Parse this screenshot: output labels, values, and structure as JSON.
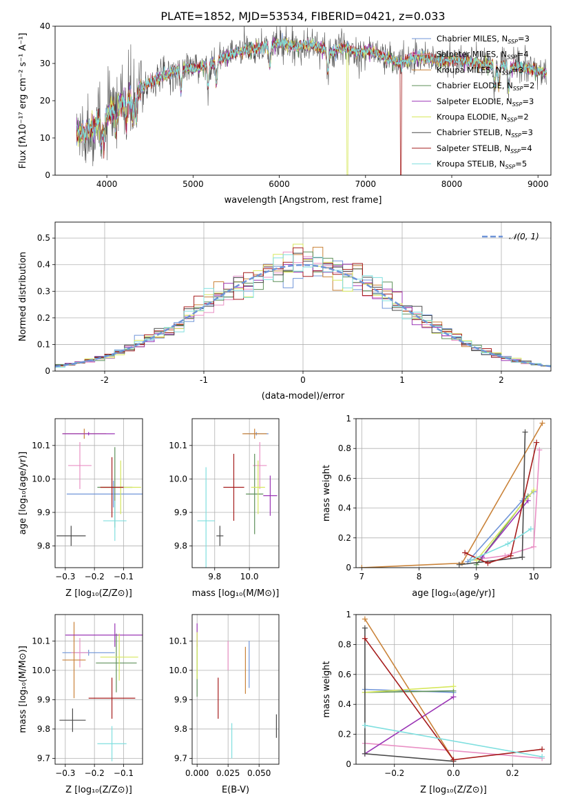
{
  "title": "PLATE=1852, MJD=53534, FIBERID=0421, z=0.033",
  "colors": {
    "chabrier_miles": "#6f94d8",
    "salpeter_miles": "#e98fc4",
    "kroupa_miles": "#c98238",
    "chabrier_elodie": "#5d8f58",
    "salpeter_elodie": "#9a34b5",
    "kroupa_elodie": "#d6e75b",
    "chabrier_stelib": "#4a4a4a",
    "salpeter_stelib": "#a51b1b",
    "kroupa_stelib": "#7fdfdf",
    "normal": "#6f94d8"
  },
  "legend": {
    "ssp_names": [
      "Chabrier MILES",
      "Salpeter MILES",
      "Kroupa MILES",
      "Chabrier ELODIE",
      "Salpeter ELODIE",
      "Kroupa ELODIE",
      "Chabrier STELIB",
      "Salpeter STELIB",
      "Kroupa STELIB"
    ],
    "nssp": [
      "3",
      "4",
      "3",
      "2",
      "3",
      "2",
      "3",
      "4",
      "5"
    ],
    "nssp_prefix": ", N",
    "nssp_sub": "SSP",
    "nssp_eq": "=",
    "normal_label": "𝒩(0, 1)"
  },
  "chart_data": [
    {
      "type": "line",
      "id": "spectrum",
      "xlabel": "wavelength [Angstrom, rest frame]",
      "ylabel": "Flux [fλ10⁻¹⁷ erg cm⁻² s⁻¹ A⁻¹]",
      "xlim": [
        3400,
        9150
      ],
      "ylim": [
        0,
        40
      ],
      "xticks": [
        4000,
        5000,
        6000,
        7000,
        8000,
        9000
      ],
      "yticks": [
        0,
        10,
        20,
        30,
        40
      ],
      "continuum": {
        "x": [
          3650,
          3700,
          3800,
          3900,
          3950,
          4000,
          4100,
          4200,
          4300,
          4400,
          4500,
          4600,
          4700,
          4800,
          4900,
          5000,
          5100,
          5200,
          5300,
          5400,
          5500,
          5600,
          5700,
          5800,
          5900,
          6000,
          6100,
          6200,
          6300,
          6400,
          6500,
          6600,
          6700,
          6800,
          6900,
          7000,
          7100,
          7200,
          7300,
          7400,
          7500,
          7600,
          7700,
          7800,
          7900,
          8000,
          8100,
          8200,
          8300,
          8400,
          8500,
          8600,
          8700,
          8800,
          8900,
          9000,
          9100
        ],
        "y": [
          12,
          11,
          12,
          14,
          14,
          16,
          18,
          20,
          21,
          23,
          25,
          26,
          27,
          28,
          29,
          28.5,
          29,
          30,
          31,
          32,
          33,
          33.5,
          34,
          34.5,
          35,
          35.5,
          35,
          34.5,
          35,
          35,
          34,
          33,
          34,
          34,
          33,
          33.5,
          33,
          32,
          31,
          30,
          31,
          32,
          31.5,
          31,
          30.5,
          31,
          31,
          30.5,
          30,
          29.5,
          30,
          29.5,
          29,
          29,
          28.5,
          28,
          27.5
        ]
      },
      "absorption_lines": [
        3934,
        3969,
        4102,
        4226,
        4300,
        4340,
        4861,
        5175,
        5270,
        5890,
        6563,
        8498,
        8542,
        8662
      ],
      "dropouts": [
        {
          "series": "kroupa_elodie",
          "x": 6790
        },
        {
          "series": "salpeter_stelib",
          "x": 7410
        }
      ]
    },
    {
      "type": "histogram",
      "id": "residuals",
      "xlabel": "(data-model)/error",
      "ylabel": "Normed distribution",
      "xlim": [
        -2.5,
        2.5
      ],
      "ylim": [
        0,
        0.56
      ],
      "xticks": [
        -2,
        -1,
        0,
        1,
        2
      ],
      "yticks": [
        0,
        0.1,
        0.2,
        0.3,
        0.4,
        0.5
      ],
      "bin_width": 0.1,
      "bin_start": -2.5,
      "grid": true,
      "normal": {
        "mean": 0,
        "sigma": 1
      },
      "legend_position": "top-right"
    },
    {
      "type": "errorbar",
      "id": "age_vs_z",
      "xlabel": "Z [log₁₀(Z/Z⊙)]",
      "ylabel": "age  [log₁₀(age/yr)]",
      "xlim": [
        -0.335,
        -0.035
      ],
      "ylim": [
        9.735,
        10.18
      ],
      "xticks": [
        -0.3,
        -0.2,
        -0.1
      ],
      "xticklabels": [
        "−0.3",
        "−0.2",
        "−0.1"
      ],
      "yticks": [
        9.8,
        9.9,
        10.0,
        10.1
      ],
      "yticklabels": [
        "9.8",
        "9.9",
        "10.0",
        "10.1"
      ],
      "points": [
        {
          "s": "chabrier_miles",
          "x": -0.135,
          "y": 9.955,
          "xe": 0.16,
          "ye": 0.04
        },
        {
          "s": "salpeter_miles",
          "x": -0.25,
          "y": 10.04,
          "xe": 0.04,
          "ye": 0.07
        },
        {
          "s": "kroupa_miles",
          "x": -0.235,
          "y": 10.135,
          "xe": 0.075,
          "ye": 0.015
        },
        {
          "s": "chabrier_elodie",
          "x": -0.13,
          "y": 9.975,
          "xe": 0.06,
          "ye": 0.12
        },
        {
          "s": "salpeter_elodie",
          "x": -0.22,
          "y": 10.135,
          "xe": 0.09,
          "ye": 0.005
        },
        {
          "s": "kroupa_elodie",
          "x": -0.11,
          "y": 9.975,
          "xe": 0.07,
          "ye": 0.08
        },
        {
          "s": "chabrier_stelib",
          "x": -0.28,
          "y": 9.83,
          "xe": 0.05,
          "ye": 0.03
        },
        {
          "s": "salpeter_stelib",
          "x": -0.14,
          "y": 9.975,
          "xe": 0.04,
          "ye": 0.09
        },
        {
          "s": "kroupa_stelib",
          "x": -0.13,
          "y": 9.875,
          "xe": 0.04,
          "ye": 0.06
        }
      ]
    },
    {
      "type": "errorbar",
      "id": "age_vs_mass",
      "xlabel": "mass [log₁₀(M/M⊙)]",
      "ylabel": "",
      "xlim": [
        9.67,
        10.17
      ],
      "ylim": [
        9.735,
        10.18
      ],
      "xticks": [
        9.8,
        10.0
      ],
      "xticklabels": [
        "9.8",
        "10.0"
      ],
      "yticks": [
        9.8,
        9.9,
        10.0,
        10.1
      ],
      "yticklabels": [
        "9.8",
        "9.9",
        "10.0",
        "10.1"
      ],
      "points": [
        {
          "s": "chabrier_miles",
          "x": 10.04,
          "y": 10.135,
          "xe": 0.07,
          "ye": 0.005
        },
        {
          "s": "salpeter_miles",
          "x": 10.06,
          "y": 10.04,
          "xe": 0.04,
          "ye": 0.07
        },
        {
          "s": "kroupa_miles",
          "x": 10.03,
          "y": 10.135,
          "xe": 0.07,
          "ye": 0.015
        },
        {
          "s": "chabrier_elodie",
          "x": 10.03,
          "y": 9.955,
          "xe": 0.05,
          "ye": 0.12
        },
        {
          "s": "salpeter_elodie",
          "x": 10.12,
          "y": 9.95,
          "xe": 0.04,
          "ye": 0.06
        },
        {
          "s": "kroupa_elodie",
          "x": 10.05,
          "y": 9.975,
          "xe": 0.04,
          "ye": 0.08
        },
        {
          "s": "chabrier_stelib",
          "x": 9.83,
          "y": 9.83,
          "xe": 0.02,
          "ye": 0.03
        },
        {
          "s": "salpeter_stelib",
          "x": 9.91,
          "y": 9.975,
          "xe": 0.06,
          "ye": 0.1
        },
        {
          "s": "kroupa_stelib",
          "x": 9.75,
          "y": 9.875,
          "xe": 0.05,
          "ye": 0.16
        }
      ]
    },
    {
      "type": "line",
      "id": "weight_vs_age",
      "xlabel": "age  [log₁₀(age/yr)]",
      "ylabel": "mass weight",
      "xlim": [
        6.9,
        10.3
      ],
      "ylim": [
        0,
        1.0
      ],
      "xticks": [
        7,
        8,
        9,
        10
      ],
      "yticks": [
        0,
        0.2,
        0.4,
        0.6,
        0.8,
        1.0
      ],
      "grid": true,
      "series": [
        {
          "s": "chabrier_miles",
          "x": [
            8.85,
            9.8,
            10.0
          ],
          "y": [
            0.04,
            0.45,
            0.51
          ]
        },
        {
          "s": "salpeter_miles",
          "x": [
            8.9,
            9.5,
            10.0,
            10.1
          ],
          "y": [
            0.05,
            0.08,
            0.14,
            0.79
          ]
        },
        {
          "s": "kroupa_miles",
          "x": [
            7.0,
            8.75,
            10.15
          ],
          "y": [
            0.0,
            0.03,
            0.97
          ]
        },
        {
          "s": "chabrier_elodie",
          "x": [
            9.0,
            9.9
          ],
          "y": [
            0.02,
            0.48
          ]
        },
        {
          "s": "salpeter_elodie",
          "x": [
            9.1,
            9.9
          ],
          "y": [
            0.07,
            0.45
          ]
        },
        {
          "s": "kroupa_elodie",
          "x": [
            9.0,
            10.0
          ],
          "y": [
            0.05,
            0.52
          ]
        },
        {
          "s": "chabrier_stelib",
          "x": [
            8.7,
            9.8,
            9.85
          ],
          "y": [
            0.02,
            0.07,
            0.91
          ]
        },
        {
          "s": "salpeter_stelib",
          "x": [
            8.8,
            9.2,
            9.6,
            10.05
          ],
          "y": [
            0.1,
            0.03,
            0.08,
            0.84
          ]
        },
        {
          "s": "kroupa_stelib",
          "x": [
            8.9,
            9.55,
            9.95
          ],
          "y": [
            0.05,
            0.16,
            0.26
          ]
        }
      ]
    },
    {
      "type": "errorbar",
      "id": "mass_vs_z",
      "xlabel": "Z [log₁₀(Z/Z⊙)]",
      "ylabel": "mass [log₁₀(M/M⊙)]",
      "xlim": [
        -0.335,
        -0.035
      ],
      "ylim": [
        9.68,
        10.19
      ],
      "xticks": [
        -0.3,
        -0.2,
        -0.1
      ],
      "xticklabels": [
        "−0.3",
        "−0.2",
        "−0.1"
      ],
      "yticks": [
        9.7,
        9.8,
        9.9,
        10.0,
        10.1
      ],
      "yticklabels": [
        "9.7",
        "9.8",
        "9.9",
        "10.0",
        "10.1"
      ],
      "points": [
        {
          "s": "chabrier_miles",
          "x": -0.22,
          "y": 10.06,
          "xe": 0.09,
          "ye": 0.01
        },
        {
          "s": "salpeter_miles",
          "x": -0.25,
          "y": 10.06,
          "xe": 0.03,
          "ye": 0.05
        },
        {
          "s": "kroupa_miles",
          "x": -0.27,
          "y": 10.035,
          "xe": 0.04,
          "ye": 0.13
        },
        {
          "s": "chabrier_elodie",
          "x": -0.125,
          "y": 10.025,
          "xe": 0.07,
          "ye": 0.1
        },
        {
          "s": "salpeter_elodie",
          "x": -0.13,
          "y": 10.12,
          "xe": 0.17,
          "ye": 0.04
        },
        {
          "s": "kroupa_elodie",
          "x": -0.115,
          "y": 10.045,
          "xe": 0.065,
          "ye": 0.08
        },
        {
          "s": "chabrier_stelib",
          "x": -0.275,
          "y": 9.83,
          "xe": 0.045,
          "ye": 0.04
        },
        {
          "s": "salpeter_stelib",
          "x": -0.14,
          "y": 9.905,
          "xe": 0.08,
          "ye": 0.07
        },
        {
          "s": "kroupa_stelib",
          "x": -0.14,
          "y": 9.75,
          "xe": 0.05,
          "ye": 0.06
        }
      ]
    },
    {
      "type": "errorbar",
      "id": "mass_vs_ebv",
      "xlabel": "E(B-V)",
      "ylabel": "",
      "xlim": [
        -0.004,
        0.066
      ],
      "ylim": [
        9.68,
        10.19
      ],
      "xticks": [
        0.0,
        0.025,
        0.05
      ],
      "xticklabels": [
        "0.000",
        "0.025",
        "0.050"
      ],
      "yticks": [
        9.7,
        9.8,
        9.9,
        10.0,
        10.1
      ],
      "yticklabels": [
        "9.7",
        "9.8",
        "9.9",
        "10.0",
        "10.1"
      ],
      "points": [
        {
          "s": "chabrier_miles",
          "x": 0.042,
          "y": 10.02,
          "xe": 0,
          "ye": 0.08
        },
        {
          "s": "salpeter_miles",
          "x": 0.025,
          "y": 10.05,
          "xe": 0,
          "ye": 0.05
        },
        {
          "s": "kroupa_miles",
          "x": 0.039,
          "y": 10.0,
          "xe": 0,
          "ye": 0.08
        },
        {
          "s": "chabrier_elodie",
          "x": 0.0,
          "y": 10.0,
          "xe": 0,
          "ye": 0.09
        },
        {
          "s": "salpeter_elodie",
          "x": 0.0,
          "y": 10.12,
          "xe": 0,
          "ye": 0.04
        },
        {
          "s": "kroupa_elodie",
          "x": 0.0,
          "y": 10.05,
          "xe": 0,
          "ye": 0.08
        },
        {
          "s": "chabrier_stelib",
          "x": 0.064,
          "y": 9.81,
          "xe": 0,
          "ye": 0.04
        },
        {
          "s": "salpeter_stelib",
          "x": 0.017,
          "y": 9.905,
          "xe": 0,
          "ye": 0.07
        },
        {
          "s": "kroupa_stelib",
          "x": 0.028,
          "y": 9.76,
          "xe": 0,
          "ye": 0.06
        }
      ]
    },
    {
      "type": "line",
      "id": "weight_vs_z",
      "xlabel": "Z [log₁₀(Z/Z⊙)]",
      "ylabel": "mass weight",
      "xlim": [
        -0.33,
        0.33
      ],
      "ylim": [
        0,
        1.0
      ],
      "xticks": [
        -0.2,
        0.0,
        0.2
      ],
      "xticklabels": [
        "−0.2",
        "0.0",
        "0.2"
      ],
      "yticks": [
        0,
        0.2,
        0.4,
        0.6,
        0.8,
        1.0
      ],
      "grid": true,
      "series": [
        {
          "s": "chabrier_miles",
          "x": [
            -0.3,
            0.0
          ],
          "y": [
            0.5,
            0.48
          ]
        },
        {
          "s": "salpeter_miles",
          "x": [
            -0.3,
            0.3
          ],
          "y": [
            0.14,
            0.04
          ]
        },
        {
          "s": "kroupa_miles",
          "x": [
            -0.3,
            0.0
          ],
          "y": [
            0.97,
            0.03
          ]
        },
        {
          "s": "chabrier_elodie",
          "x": [
            -0.3,
            0.0
          ],
          "y": [
            0.48,
            0.49
          ]
        },
        {
          "s": "salpeter_elodie",
          "x": [
            -0.3,
            0.0
          ],
          "y": [
            0.07,
            0.45
          ]
        },
        {
          "s": "kroupa_elodie",
          "x": [
            -0.3,
            0.0
          ],
          "y": [
            0.48,
            0.52
          ]
        },
        {
          "s": "chabrier_stelib",
          "x": [
            -0.3,
            -0.3,
            0.0
          ],
          "y": [
            0.91,
            0.07,
            0.02
          ]
        },
        {
          "s": "salpeter_stelib",
          "x": [
            -0.3,
            0.0,
            0.3
          ],
          "y": [
            0.84,
            0.03,
            0.1
          ]
        },
        {
          "s": "kroupa_stelib",
          "x": [
            -0.3,
            0.3
          ],
          "y": [
            0.26,
            0.05
          ]
        }
      ]
    }
  ]
}
